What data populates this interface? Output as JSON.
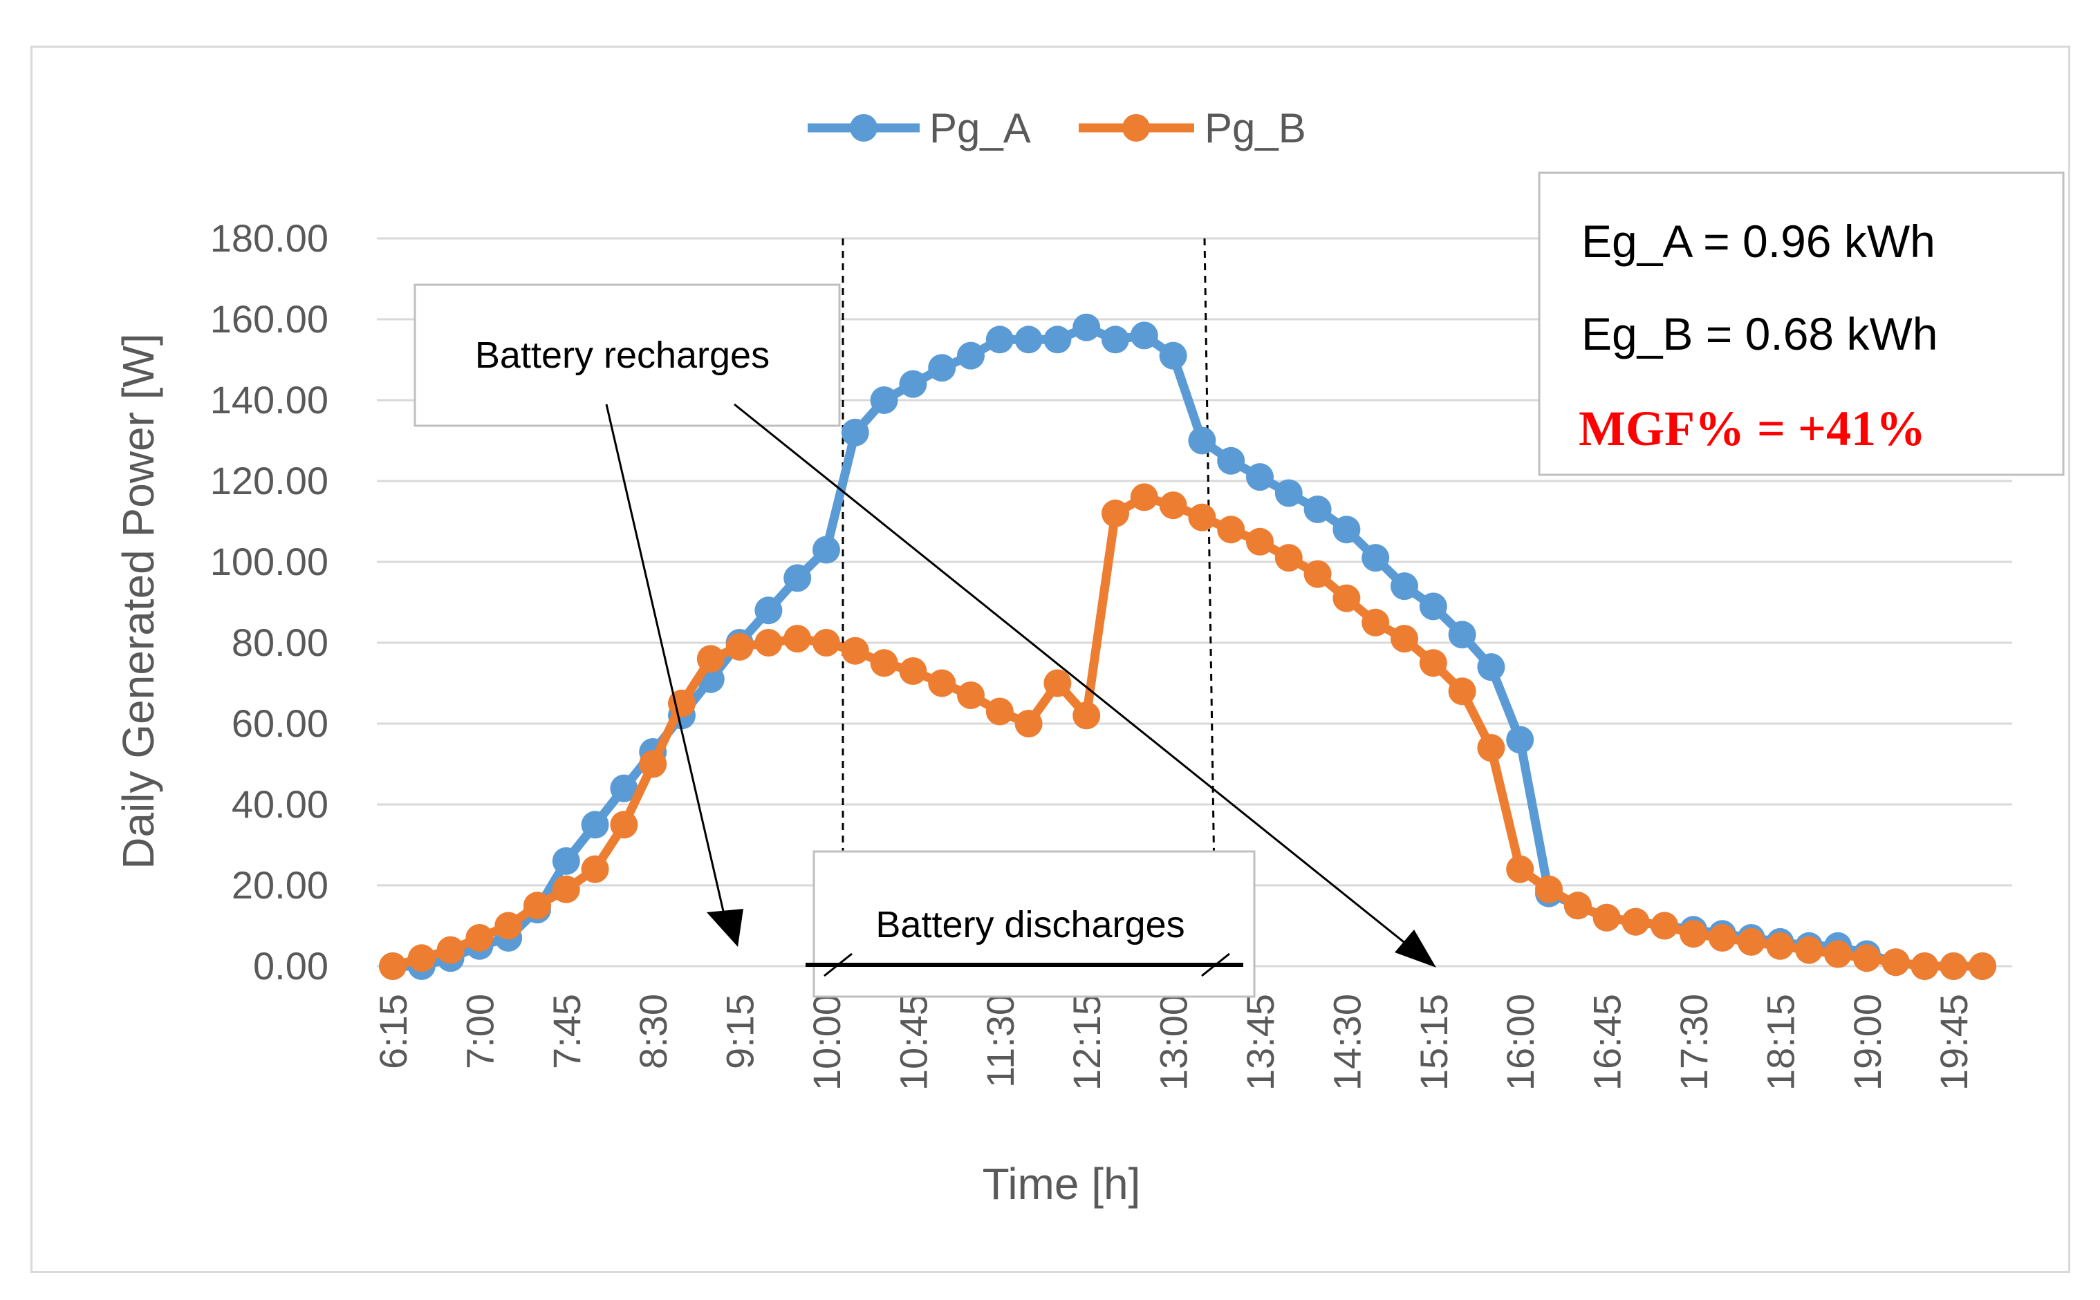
{
  "chart_data": {
    "type": "line",
    "title": "",
    "xlabel": "Time [h]",
    "ylabel": "Daily Generated Power [W]",
    "ylim": [
      0,
      180
    ],
    "yticks": [
      "0.00",
      "20.00",
      "40.00",
      "60.00",
      "80.00",
      "100.00",
      "120.00",
      "140.00",
      "160.00",
      "180.00"
    ],
    "xtick_labels": [
      "6:15",
      "7:00",
      "7:45",
      "8:30",
      "9:15",
      "10:00",
      "10:45",
      "11:30",
      "12:15",
      "13:00",
      "13:45",
      "14:30",
      "15:15",
      "16:00",
      "16:45",
      "17:30",
      "18:15",
      "19:00",
      "19:45"
    ],
    "x_start": "6:15",
    "x_step_minutes": 15,
    "grid": true,
    "legend_position": "top-center",
    "series": [
      {
        "name": "Pg_A",
        "color": "#5b9bd5",
        "values": [
          0,
          0,
          2,
          5,
          7,
          14,
          26,
          35,
          44,
          53,
          62,
          71,
          80,
          88,
          96,
          103,
          132,
          140,
          144,
          148,
          151,
          155,
          155,
          155,
          158,
          155,
          156,
          151,
          130,
          125,
          121,
          117,
          113,
          108,
          101,
          94,
          89,
          82,
          74,
          56,
          18,
          15,
          12,
          11,
          10,
          9,
          8,
          7,
          6,
          5,
          5,
          3,
          1,
          0,
          0,
          0
        ]
      },
      {
        "name": "Pg_B",
        "color": "#ed7d31",
        "values": [
          0,
          2,
          4,
          7,
          10,
          15,
          19,
          24,
          35,
          50,
          65,
          76,
          79,
          80,
          81,
          80,
          78,
          75,
          73,
          70,
          67,
          63,
          60,
          70,
          62,
          112,
          116,
          114,
          111,
          108,
          105,
          101,
          97,
          91,
          85,
          81,
          75,
          68,
          54,
          24,
          19,
          15,
          12,
          11,
          10,
          8,
          7,
          6,
          5,
          4,
          3,
          2,
          1,
          0,
          0,
          0
        ]
      }
    ],
    "annotations": {
      "recharge_label": "Battery recharges",
      "discharge_label": "Battery discharges"
    },
    "stats": {
      "eg_a": "Eg_A = 0.96 kWh",
      "eg_b": "Eg_B = 0.68 kWh",
      "mgf": "MGF% = +41%"
    }
  }
}
